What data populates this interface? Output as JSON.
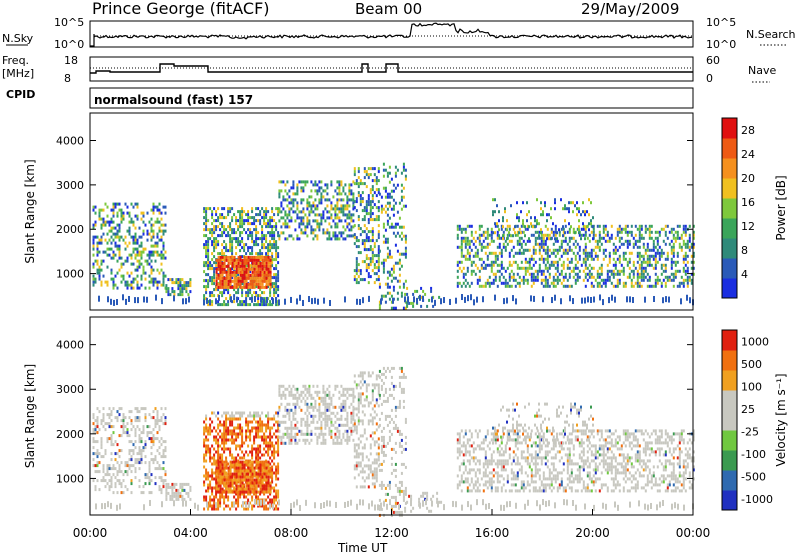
{
  "header": {
    "station": "Prince George (fitACF)",
    "beam": "Beam 00",
    "date": "29/May/2009"
  },
  "strip_labels": {
    "nsky": "N.Sky",
    "nsearch": "N.Search",
    "freq_line1": "Freq.",
    "freq_line2": "[MHz]",
    "nave": "Nave",
    "cpid": "CPID",
    "cpid_value": "normalsound (fast) 157"
  },
  "strip_ticks": {
    "noise_left": [
      "10^5",
      "10^0"
    ],
    "noise_right": [
      "10^5",
      "10^0"
    ],
    "freq_left": [
      "18",
      "8"
    ],
    "nave_right": [
      "60",
      "0"
    ]
  },
  "colors": {
    "power_scale": [
      "#1a2ee0",
      "#2a5ab8",
      "#2f8a7a",
      "#3aa55a",
      "#7ec83c",
      "#f0c020",
      "#f5901e",
      "#ee5a14",
      "#e01010"
    ],
    "velocity_scale": [
      "#2030c0",
      "#2f6ab0",
      "#3a9a50",
      "#70c840",
      "#c8c8c0",
      "#c8c8c0",
      "#f0a020",
      "#f07010",
      "#e02010"
    ]
  },
  "chart_data": [
    {
      "type": "heatmap",
      "name": "power",
      "ylabel": "Slant Range [km]",
      "xlabel": "Time UT",
      "x_ticks": [
        "00:00",
        "04:00",
        "08:00",
        "12:00",
        "16:00",
        "20:00",
        "00:00"
      ],
      "y_ticks": [
        1000,
        2000,
        3000,
        4000
      ],
      "ylim": [
        180,
        4620
      ],
      "xlim_hours": [
        0,
        24
      ],
      "colorbar_label": "Power [dB]",
      "colorbar_ticks": [
        4,
        8,
        12,
        16,
        20,
        24,
        28
      ],
      "colorbar_range": [
        0,
        30
      ]
    },
    {
      "type": "heatmap",
      "name": "velocity",
      "ylabel": "Slant Range [km]",
      "xlabel": "Time UT",
      "x_ticks": [
        "00:00",
        "04:00",
        "08:00",
        "12:00",
        "16:00",
        "20:00",
        "00:00"
      ],
      "y_ticks": [
        1000,
        2000,
        3000,
        4000
      ],
      "ylim": [
        180,
        4620
      ],
      "xlim_hours": [
        0,
        24
      ],
      "colorbar_label": "Velocity [m s⁻¹]",
      "colorbar_ticks": [
        "1000",
        "500",
        "100",
        "25",
        "-25",
        "-100",
        "-500",
        "-1000"
      ]
    }
  ]
}
